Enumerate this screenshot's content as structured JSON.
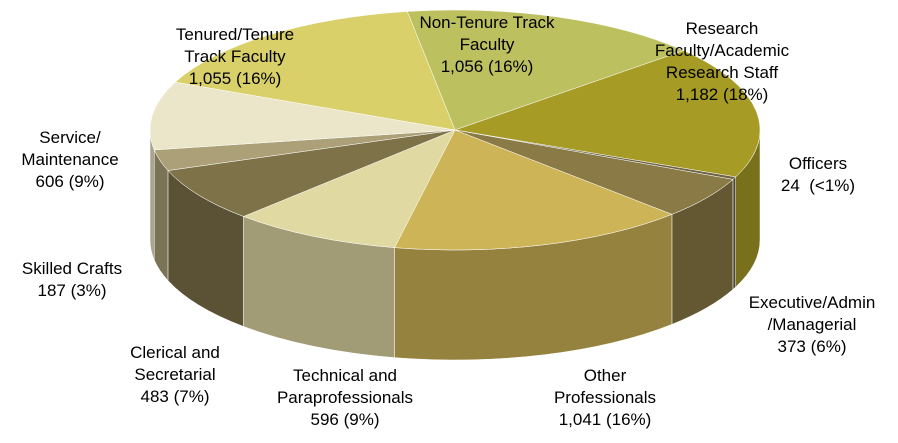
{
  "chart_data": {
    "type": "pie",
    "categories": [
      "Non-Tenure Track Faculty",
      "Research Faculty/Academic Research Staff",
      "Officers",
      "Executive/Admin /Managerial",
      "Other Professionals",
      "Technical and Paraprofessionals",
      "Clerical and Secretarial",
      "Skilled Crafts",
      "Service/ Maintenance",
      "Tenured/Tenure Track Faculty"
    ],
    "values": [
      1056,
      1182,
      24,
      373,
      1041,
      596,
      483,
      187,
      606,
      1055
    ],
    "value_labels": [
      "1,056 (16%)",
      "1,182 (18%)",
      "24  (<1%)",
      "373 (6%)",
      "1,041 (16%)",
      "596 (9%)",
      "483 (7%)",
      "187 (3%)",
      "606 (9%)",
      "1,055 (16%)"
    ],
    "colors": [
      "#bcc05e",
      "#a69c25",
      "#6f6546",
      "#8a7a45",
      "#cdb456",
      "#e0d9a2",
      "#7e7249",
      "#aba078",
      "#ebe5c9",
      "#d9d06a"
    ]
  }
}
